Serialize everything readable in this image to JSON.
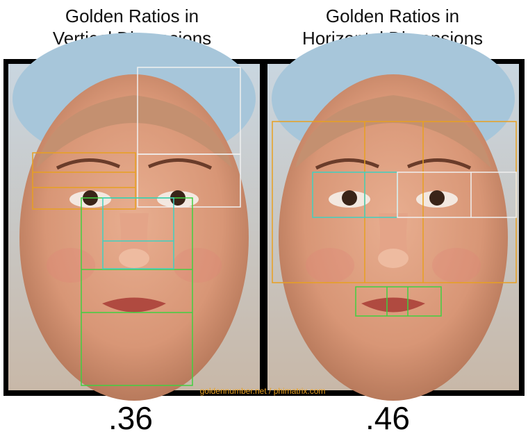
{
  "panels": [
    {
      "title": [
        "Golden Ratios in",
        "Vertical Dimensions"
      ],
      "score": ".36"
    },
    {
      "title": [
        "Golden Ratios in",
        "Horizontal Dimensions"
      ],
      "score": ".46"
    }
  ],
  "watermark": "goldennumber.net / phimatrix.com"
}
